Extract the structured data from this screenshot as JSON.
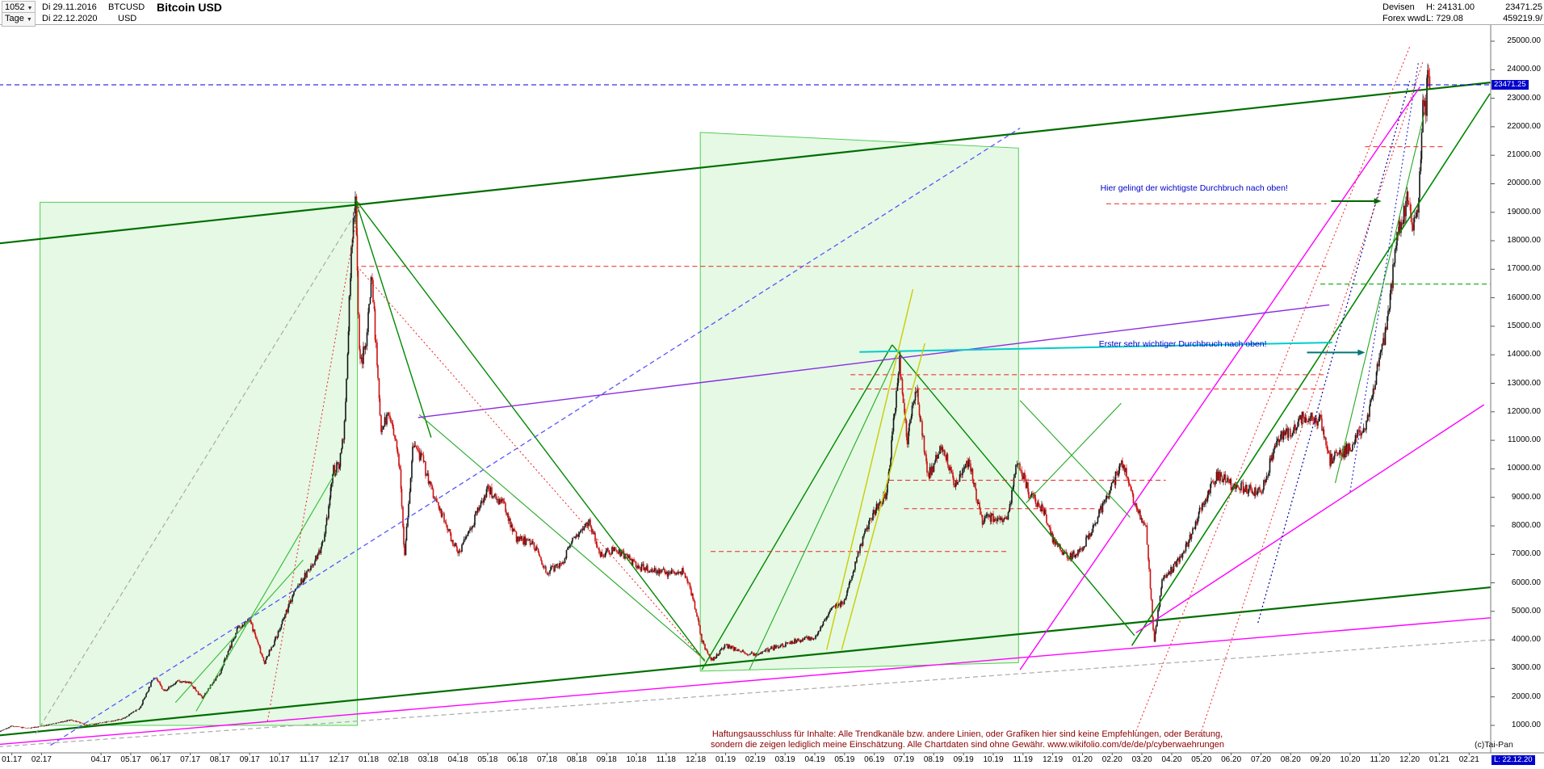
{
  "window": {
    "bars_count": "1052",
    "timeframe": "Tage",
    "date_from": "Di 29.11.2016",
    "date_to": "Di 22.12.2020",
    "symbol": "BTCUSD",
    "currency": "USD",
    "title": "Bitcoin USD",
    "market": "Devisen",
    "feed": "Forex wwd",
    "high_label": "H: 24131.00",
    "low_label": "L: 729.08",
    "last_price": "23471.25",
    "turnover": "459219.9/"
  },
  "chart_data": {
    "type": "candlestick",
    "title": "Bitcoin USD",
    "symbol": "BTCUSD",
    "timeframe": "Tage",
    "start_date": "29.11.2016",
    "end_date": "22.12.2020",
    "last": 23471.25,
    "high": 24131.0,
    "low": 729.08,
    "colors": {
      "up": "#151515",
      "down": "#cc1111",
      "accent_blue": "#0000cc"
    },
    "y_axis": {
      "min": 1000,
      "max": 25000,
      "tick_values": [
        25000,
        24000,
        23000,
        22000,
        21000,
        20000,
        19000,
        18000,
        17000,
        16000,
        15000,
        14000,
        13000,
        12000,
        11000,
        10000,
        9000,
        8000,
        7000,
        6000,
        5000,
        4000,
        3000,
        2000,
        1000
      ]
    },
    "x_axis": {
      "last_label": "L: 22.12.20",
      "ticks": [
        {
          "t": 0,
          "label": "01.17"
        },
        {
          "t": 1,
          "label": "02.17"
        },
        {
          "t": 3,
          "label": "04.17"
        },
        {
          "t": 4,
          "label": "05.17"
        },
        {
          "t": 5,
          "label": "06.17"
        },
        {
          "t": 6,
          "label": "07.17"
        },
        {
          "t": 7,
          "label": "08.17"
        },
        {
          "t": 8,
          "label": "09.17"
        },
        {
          "t": 9,
          "label": "10.17"
        },
        {
          "t": 10,
          "label": "11.17"
        },
        {
          "t": 11,
          "label": "12.17"
        },
        {
          "t": 12,
          "label": "01.18"
        },
        {
          "t": 13,
          "label": "02.18"
        },
        {
          "t": 14,
          "label": "03.18"
        },
        {
          "t": 15,
          "label": "04.18"
        },
        {
          "t": 16,
          "label": "05.18"
        },
        {
          "t": 17,
          "label": "06.18"
        },
        {
          "t": 18,
          "label": "07.18"
        },
        {
          "t": 19,
          "label": "08.18"
        },
        {
          "t": 20,
          "label": "09.18"
        },
        {
          "t": 21,
          "label": "10.18"
        },
        {
          "t": 22,
          "label": "11.18"
        },
        {
          "t": 23,
          "label": "12.18"
        },
        {
          "t": 24,
          "label": "01.19"
        },
        {
          "t": 25,
          "label": "02.19"
        },
        {
          "t": 26,
          "label": "03.19"
        },
        {
          "t": 27,
          "label": "04.19"
        },
        {
          "t": 28,
          "label": "05.19"
        },
        {
          "t": 29,
          "label": "06.19"
        },
        {
          "t": 30,
          "label": "07.19"
        },
        {
          "t": 31,
          "label": "08.19"
        },
        {
          "t": 32,
          "label": "09.19"
        },
        {
          "t": 33,
          "label": "10.19"
        },
        {
          "t": 34,
          "label": "11.19"
        },
        {
          "t": 35,
          "label": "12.19"
        },
        {
          "t": 36,
          "label": "01.20"
        },
        {
          "t": 37,
          "label": "02.20"
        },
        {
          "t": 38,
          "label": "03.20"
        },
        {
          "t": 39,
          "label": "04.20"
        },
        {
          "t": 40,
          "label": "05.20"
        },
        {
          "t": 41,
          "label": "06.20"
        },
        {
          "t": 42,
          "label": "07.20"
        },
        {
          "t": 43,
          "label": "08.20"
        },
        {
          "t": 44,
          "label": "09.20"
        },
        {
          "t": 45,
          "label": "10.20"
        },
        {
          "t": 46,
          "label": "11.20"
        },
        {
          "t": 47,
          "label": "12.20"
        },
        {
          "t": 48,
          "label": "01.21"
        },
        {
          "t": 49,
          "label": "02.21"
        }
      ]
    },
    "price_marker": {
      "label": "23471.25",
      "price": 23471.25
    },
    "series_monthly_close": [
      [
        -1.0,
        735
      ],
      [
        -0.5,
        745
      ],
      [
        0,
        975
      ],
      [
        0.5,
        900
      ],
      [
        1,
        965
      ],
      [
        2,
        1190
      ],
      [
        2.5,
        1010
      ],
      [
        3,
        1080
      ],
      [
        3.7,
        1220
      ],
      [
        4.3,
        1600
      ],
      [
        4.8,
        2750
      ],
      [
        5.1,
        2200
      ],
      [
        5.6,
        2550
      ],
      [
        6.0,
        2480
      ],
      [
        6.4,
        1950
      ],
      [
        7.0,
        2870
      ],
      [
        7.6,
        4400
      ],
      [
        8.0,
        4700
      ],
      [
        8.5,
        3200
      ],
      [
        9.0,
        4350
      ],
      [
        9.5,
        5700
      ],
      [
        10.0,
        6450
      ],
      [
        10.5,
        7400
      ],
      [
        10.8,
        9900
      ],
      [
        11.0,
        10100
      ],
      [
        11.2,
        11600
      ],
      [
        11.4,
        17200
      ],
      [
        11.55,
        19800
      ],
      [
        11.7,
        13600
      ],
      [
        11.9,
        14300
      ],
      [
        12.1,
        16900
      ],
      [
        12.4,
        11500
      ],
      [
        12.7,
        11900
      ],
      [
        13.05,
        10100
      ],
      [
        13.2,
        6950
      ],
      [
        13.5,
        10900
      ],
      [
        13.8,
        10300
      ],
      [
        14.2,
        9000
      ],
      [
        14.5,
        8300
      ],
      [
        15.0,
        7000
      ],
      [
        15.5,
        8100
      ],
      [
        16.0,
        9300
      ],
      [
        16.5,
        8800
      ],
      [
        17.0,
        7500
      ],
      [
        17.5,
        7450
      ],
      [
        18.0,
        6350
      ],
      [
        18.5,
        6700
      ],
      [
        19.0,
        7750
      ],
      [
        19.4,
        8200
      ],
      [
        19.8,
        7000
      ],
      [
        20.3,
        7200
      ],
      [
        21.0,
        6600
      ],
      [
        21.5,
        6450
      ],
      [
        22.0,
        6350
      ],
      [
        22.6,
        6400
      ],
      [
        22.9,
        5500
      ],
      [
        23.2,
        4000
      ],
      [
        23.5,
        3250
      ],
      [
        24.0,
        3800
      ],
      [
        24.5,
        3600
      ],
      [
        25.0,
        3450
      ],
      [
        25.5,
        3700
      ],
      [
        26.0,
        3850
      ],
      [
        26.5,
        4000
      ],
      [
        27.0,
        4100
      ],
      [
        27.6,
        5200
      ],
      [
        28.0,
        5300
      ],
      [
        28.5,
        7200
      ],
      [
        29.0,
        8550
      ],
      [
        29.4,
        9000
      ],
      [
        29.85,
        13800
      ],
      [
        30.1,
        10900
      ],
      [
        30.4,
        12900
      ],
      [
        30.8,
        9700
      ],
      [
        31.3,
        10800
      ],
      [
        31.7,
        9500
      ],
      [
        32.2,
        10300
      ],
      [
        32.6,
        8200
      ],
      [
        33.0,
        8300
      ],
      [
        33.5,
        8300
      ],
      [
        33.8,
        10350
      ],
      [
        34.2,
        9150
      ],
      [
        34.7,
        8500
      ],
      [
        35.0,
        7550
      ],
      [
        35.5,
        6900
      ],
      [
        36.0,
        7200
      ],
      [
        36.5,
        8300
      ],
      [
        37.0,
        9350
      ],
      [
        37.3,
        10350
      ],
      [
        37.8,
        8600
      ],
      [
        38.15,
        7900
      ],
      [
        38.4,
        3900
      ],
      [
        38.7,
        6200
      ],
      [
        39.0,
        6450
      ],
      [
        39.5,
        7300
      ],
      [
        40.0,
        8650
      ],
      [
        40.5,
        9800
      ],
      [
        41.0,
        9450
      ],
      [
        41.5,
        9300
      ],
      [
        42.0,
        9140
      ],
      [
        42.5,
        10900
      ],
      [
        43.0,
        11350
      ],
      [
        43.5,
        11900
      ],
      [
        44.0,
        11650
      ],
      [
        44.3,
        10300
      ],
      [
        44.7,
        10500
      ],
      [
        45.0,
        10780
      ],
      [
        45.5,
        11500
      ],
      [
        46.0,
        13800
      ],
      [
        46.3,
        15500
      ],
      [
        46.6,
        18300
      ],
      [
        47.0,
        19700
      ],
      [
        47.1,
        18300
      ],
      [
        47.3,
        19200
      ],
      [
        47.45,
        23200
      ],
      [
        47.55,
        22800
      ],
      [
        47.62,
        24131
      ],
      [
        47.68,
        23471
      ]
    ],
    "overlays": [
      [
        -0.5,
        17900,
        49.8,
        23560,
        "#006e00",
        2.2,
        "solid"
      ],
      [
        -0.5,
        640,
        49.8,
        5850,
        "#006e00",
        2.2,
        "solid"
      ],
      [
        11.55,
        19450,
        23.3,
        3250,
        "#008800",
        1.4,
        "solid"
      ],
      [
        11.55,
        19450,
        14.1,
        11100,
        "#008800",
        1.4,
        "solid"
      ],
      [
        13.7,
        11900,
        23.3,
        3300,
        "#22aa22",
        1.1,
        "solid"
      ],
      [
        23.2,
        2950,
        29.6,
        14350,
        "#008800",
        1.4,
        "solid"
      ],
      [
        24.8,
        2950,
        29.75,
        14000,
        "#22aa22",
        1.1,
        "solid"
      ],
      [
        29.6,
        14350,
        37.75,
        4150,
        "#008800",
        1.4,
        "solid"
      ],
      [
        37.66,
        3800,
        49.7,
        23160,
        "#008800",
        1.6,
        "solid"
      ],
      [
        33.9,
        12400,
        37.6,
        8300,
        "#22aa22",
        1.1,
        "solid"
      ],
      [
        34.1,
        8800,
        37.3,
        12300,
        "#22aa22",
        1.1,
        "solid"
      ],
      [
        44.0,
        16480,
        49.8,
        16480,
        "#00aa00",
        1.2,
        "dash"
      ],
      [
        44.5,
        9500,
        47.5,
        22500,
        "#22aa22",
        1.1,
        "solid"
      ],
      [
        5.5,
        1800,
        9.8,
        6800,
        "#33bb33",
        1.1,
        "solid"
      ],
      [
        6.2,
        1500,
        10.9,
        9900,
        "#33bb33",
        1.1,
        "solid"
      ],
      [
        -0.45,
        330,
        49.8,
        4780,
        "#ff00ff",
        1.4,
        "solid"
      ],
      [
        33.9,
        2950,
        47.35,
        23400,
        "#ff00ff",
        1.4,
        "solid"
      ],
      [
        37.8,
        4250,
        49.5,
        12250,
        "#ff00ff",
        1.4,
        "solid"
      ],
      [
        13.66,
        11800,
        44.3,
        15750,
        "#8a2be2",
        1.4,
        "solid"
      ],
      [
        1.3,
        300,
        33.9,
        21950,
        "#5555ff",
        1.3,
        "dash"
      ],
      [
        41.9,
        4600,
        47.0,
        23600,
        "#000099",
        1.2,
        "dot"
      ],
      [
        45.0,
        9200,
        47.3,
        24300,
        "#3333cc",
        1.2,
        "dot"
      ],
      [
        -0.45,
        250,
        49.8,
        4000,
        "#aaaaaa",
        1.2,
        "dash"
      ],
      [
        0.8,
        700,
        11.7,
        19200,
        "#aaaaaa",
        1.2,
        "dash"
      ],
      [
        11.75,
        17100,
        44.2,
        17100,
        "#ee2222",
        1,
        "dash"
      ],
      [
        28.2,
        13300,
        44.2,
        13300,
        "#ee2222",
        1,
        "dash"
      ],
      [
        28.2,
        12800,
        44.2,
        12800,
        "#ee2222",
        1,
        "dash"
      ],
      [
        29.5,
        9600,
        38.8,
        9600,
        "#ee2222",
        1,
        "dash"
      ],
      [
        23.5,
        7100,
        33.5,
        7100,
        "#ee2222",
        1,
        "dash"
      ],
      [
        30.0,
        8600,
        36.5,
        8600,
        "#ee2222",
        1,
        "dash"
      ],
      [
        36.8,
        19300,
        44.2,
        19300,
        "#ee2222",
        1,
        "dash"
      ],
      [
        45.5,
        21300,
        48.2,
        21300,
        "#ee2222",
        1,
        "dash"
      ],
      [
        8.6,
        1150,
        11.7,
        19400,
        "#ee2222",
        1,
        "dot"
      ],
      [
        11.7,
        17000,
        23.3,
        3250,
        "#ee2222",
        1,
        "dot"
      ],
      [
        37.8,
        800,
        47.0,
        24800,
        "#ee2222",
        1,
        "dot"
      ],
      [
        40.0,
        800,
        47.45,
        24300,
        "#ee2222",
        1,
        "dot"
      ],
      [
        28.5,
        14100,
        44.4,
        14430,
        "#00cccc",
        2,
        "solid"
      ],
      [
        27.4,
        3650,
        30.3,
        16300,
        "#cccc00",
        1.4,
        "solid"
      ],
      [
        27.9,
        3650,
        30.7,
        14400,
        "#cccc00",
        1.4,
        "solid"
      ],
      [
        -0.45,
        23471.25,
        49.85,
        23471.25,
        "#0000dd",
        1,
        "dash"
      ]
    ],
    "arrows": [
      [
        44.36,
        19390,
        46.05,
        19390,
        "#006600"
      ],
      [
        43.55,
        14080,
        45.5,
        14080,
        "#007777"
      ]
    ],
    "boxes": {
      "fill": "rgba(0,200,0,0.10)",
      "stroke": "#55cc55",
      "items": [
        [
          [
            0.95,
            19350
          ],
          [
            11.62,
            19350
          ],
          [
            11.62,
            1000
          ],
          [
            0.95,
            1000
          ]
        ],
        [
          [
            23.15,
            21800
          ],
          [
            33.85,
            21250
          ],
          [
            33.85,
            3200
          ],
          [
            23.15,
            2900
          ]
        ]
      ]
    },
    "annotations": [
      {
        "text": "Hier gelingt der wichtigste Durchbruch nach oben!",
        "t": 36.6,
        "price": 19850
      },
      {
        "text": "Erster sehr wichtiger Durchbruch nach oben!",
        "t": 36.55,
        "price": 14380
      }
    ]
  },
  "footer": {
    "disclaimer_line1": "Haftungsausschluss für Inhalte: Alle Trendkanäle bzw. andere Linien, oder Grafiken hier sind keine Empfehlungen, oder Beratung,",
    "disclaimer_line2": "sondern die zeigen lediglich meine Einschätzung. Alle Chartdaten sind ohne Gewähr.  www.wikifolio.com/de/de/p/cyberwaehrungen",
    "copyright": "(c)Tai-Pan"
  }
}
